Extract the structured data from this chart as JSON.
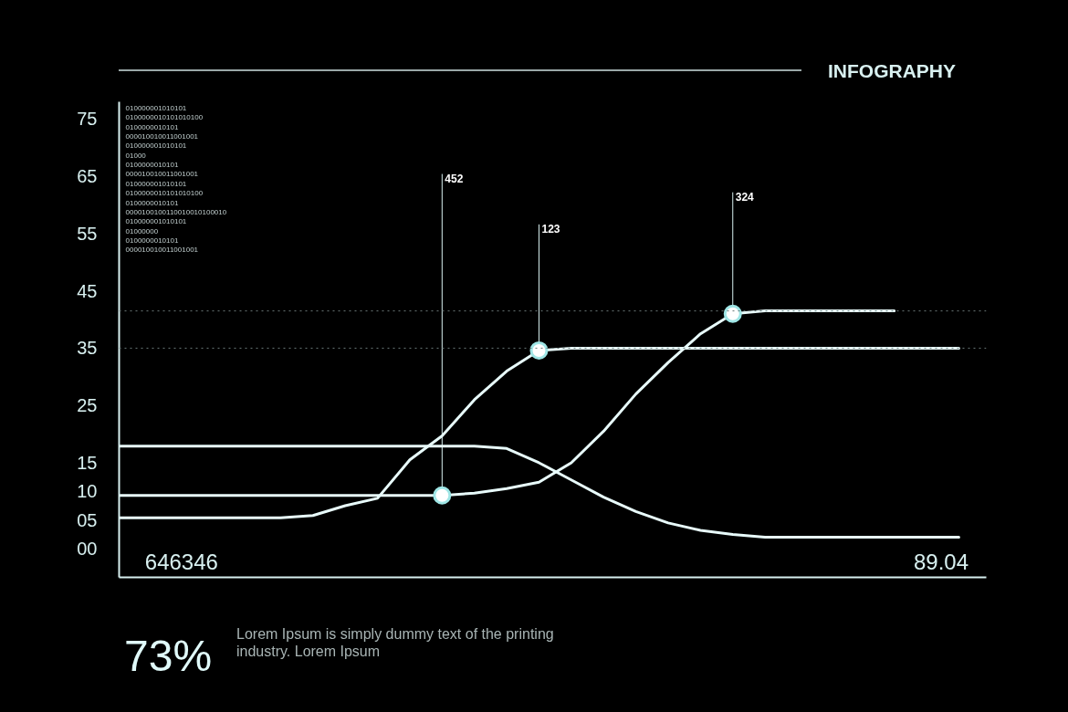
{
  "chart_data": {
    "type": "line",
    "title": "INFOGRAPHY",
    "categories": [
      null,
      null,
      null,
      null,
      null,
      null,
      null,
      null,
      null,
      null,
      null,
      null,
      null,
      null,
      null,
      null,
      null,
      null,
      null,
      null,
      null,
      null,
      null,
      null,
      null,
      null,
      null
    ],
    "ylim": [
      -5,
      78
    ],
    "yticks": [
      {
        "value": 0,
        "label": "00"
      },
      {
        "value": 5,
        "label": "05"
      },
      10,
      15,
      25,
      35,
      45,
      55,
      65,
      75
    ],
    "tick_labels": "y",
    "grid": false,
    "marker": "none",
    "line_style": "solid",
    "series": [
      {
        "color": "#e8fbfb",
        "values": [
          5.4,
          5.4,
          5.4,
          5.4,
          5.4,
          5.4,
          5.8,
          7.5,
          8.8,
          15.5,
          19.7,
          26,
          31,
          34.6,
          35,
          35,
          35,
          35,
          35,
          35,
          35,
          35,
          35,
          35,
          35,
          35,
          35
        ]
      },
      {
        "color": "#e8fbfb",
        "values": [
          9.3,
          9.3,
          9.3,
          9.3,
          9.3,
          9.3,
          9.3,
          9.3,
          9.3,
          9.3,
          9.3,
          9.7,
          10.5,
          11.6,
          15,
          20.5,
          27,
          32.5,
          37.5,
          41,
          41.5,
          41.5,
          41.5,
          41.5,
          41.5,
          null,
          null
        ]
      },
      {
        "color": "#e8fbfb",
        "values": [
          17.9,
          17.9,
          17.9,
          17.9,
          17.9,
          17.9,
          17.9,
          17.9,
          17.9,
          17.9,
          17.9,
          17.9,
          17.5,
          15,
          12,
          9,
          6.5,
          4.5,
          3.2,
          2.5,
          2,
          2,
          2,
          2,
          2,
          2,
          2
        ]
      },
      {
        "type": "scatter",
        "marker": "circle",
        "color": "#ffffff",
        "values": [
          null,
          null,
          null,
          null,
          null,
          null,
          null,
          null,
          null,
          null,
          9.3,
          null,
          null,
          34.6,
          null,
          null,
          null,
          null,
          null,
          41,
          null,
          null,
          null,
          null,
          null,
          null,
          null
        ]
      }
    ],
    "ref_lines": [
      {
        "axis": "y",
        "value": 41.5,
        "line_style": "dotted",
        "color": "#6a7878"
      },
      {
        "axis": "y",
        "value": 35,
        "line_style": "dotted",
        "color": "#6a7878"
      }
    ],
    "annotations": [
      "452",
      "123",
      "324",
      "010000001010101\n0100000010101010100\n0100000010101\n000010010011001001\n010000001010101\n01000\n0100000010101\n000010010011001001\n010000001010101\n0100000010101010100\n0100000010101\n0000100100110010010100010\n010000001010101\n01000000\n0100000010101\n000010010011001001",
      "646346",
      "89.04",
      "73%",
      "Lorem Ipsum is simply dummy text of the printing\nindustry. Lorem Ipsum"
    ]
  }
}
